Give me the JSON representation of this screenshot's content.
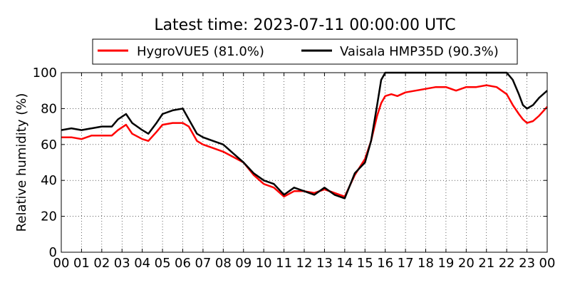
{
  "chart_data": {
    "type": "line",
    "title": "Latest time: 2023-07-11 00:00:00 UTC",
    "xlabel": "",
    "ylabel": "Relative humidity (%)",
    "xlim": [
      0,
      24
    ],
    "ylim": [
      0,
      100
    ],
    "grid": true,
    "legend_position": "top",
    "x_ticks": [
      "00",
      "01",
      "02",
      "03",
      "04",
      "05",
      "06",
      "07",
      "08",
      "09",
      "10",
      "11",
      "12",
      "13",
      "14",
      "15",
      "16",
      "17",
      "18",
      "19",
      "20",
      "21",
      "22",
      "23",
      "00"
    ],
    "y_ticks": [
      0,
      20,
      40,
      60,
      80,
      100
    ],
    "series": [
      {
        "name": "HygroVUE5 (81.0%)",
        "color": "#ff0000",
        "x": [
          0,
          0.5,
          1,
          1.5,
          2,
          2.5,
          2.8,
          3.2,
          3.5,
          4,
          4.3,
          4.7,
          5,
          5.5,
          6,
          6.3,
          6.7,
          7,
          7.5,
          8,
          8.5,
          9,
          9.5,
          10,
          10.5,
          11,
          11.5,
          12,
          12.5,
          13,
          13.5,
          14,
          14.5,
          15,
          15.3,
          15.6,
          15.8,
          16,
          16.3,
          16.6,
          17,
          17.5,
          18,
          18.5,
          19,
          19.5,
          20,
          20.5,
          21,
          21.5,
          22,
          22.3,
          22.6,
          22.8,
          23,
          23.3,
          23.6,
          24
        ],
        "y": [
          64,
          64,
          63,
          65,
          65,
          65,
          68,
          71,
          66,
          63,
          62,
          67,
          71,
          72,
          72,
          70,
          62,
          60,
          58,
          56,
          53,
          50,
          43,
          38,
          36,
          31,
          34,
          34,
          33,
          35,
          33,
          31,
          43,
          52,
          62,
          76,
          83,
          87,
          88,
          87,
          89,
          90,
          91,
          92,
          92,
          90,
          92,
          92,
          93,
          92,
          88,
          82,
          77,
          74,
          72,
          73,
          76,
          81
        ]
      },
      {
        "name": "Vaisala HMP35D (90.3%)",
        "color": "#000000",
        "x": [
          0,
          0.5,
          1,
          1.5,
          2,
          2.5,
          2.8,
          3.2,
          3.5,
          4,
          4.3,
          4.7,
          5,
          5.5,
          6,
          6.3,
          6.7,
          7,
          7.5,
          8,
          8.5,
          9,
          9.5,
          10,
          10.5,
          11,
          11.5,
          12,
          12.5,
          13,
          13.5,
          14,
          14.5,
          15,
          15.3,
          15.6,
          15.8,
          16,
          16.5,
          17,
          17.5,
          18,
          18.5,
          19,
          19.5,
          20,
          20.5,
          21,
          21.5,
          22,
          22.3,
          22.6,
          22.8,
          23,
          23.3,
          23.6,
          24
        ],
        "y": [
          68,
          69,
          68,
          69,
          70,
          70,
          74,
          77,
          72,
          68,
          66,
          72,
          77,
          79,
          80,
          74,
          66,
          64,
          62,
          60,
          55,
          50,
          44,
          40,
          38,
          32,
          36,
          34,
          32,
          36,
          32,
          30,
          44,
          50,
          62,
          82,
          96,
          100,
          100,
          100,
          100,
          100,
          100,
          100,
          100,
          100,
          100,
          100,
          100,
          100,
          96,
          88,
          82,
          80,
          82,
          86,
          90
        ]
      }
    ]
  }
}
